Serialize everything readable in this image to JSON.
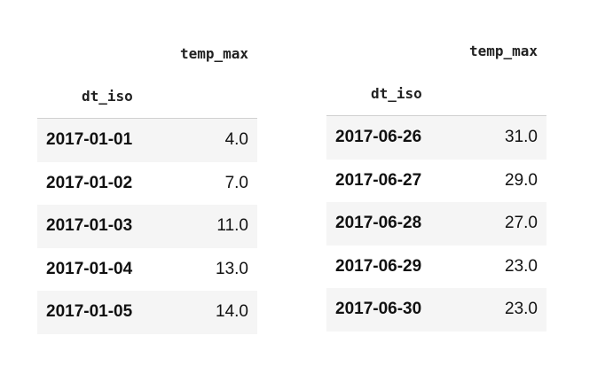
{
  "tables": [
    {
      "column_header": "temp_max",
      "index_header": "dt_iso",
      "rows": [
        {
          "dt_iso": "2017-01-01",
          "temp_max": "4.0"
        },
        {
          "dt_iso": "2017-01-02",
          "temp_max": "7.0"
        },
        {
          "dt_iso": "2017-01-03",
          "temp_max": "11.0"
        },
        {
          "dt_iso": "2017-01-04",
          "temp_max": "13.0"
        },
        {
          "dt_iso": "2017-01-05",
          "temp_max": "14.0"
        }
      ]
    },
    {
      "column_header": "temp_max",
      "index_header": "dt_iso",
      "rows": [
        {
          "dt_iso": "2017-06-26",
          "temp_max": "31.0"
        },
        {
          "dt_iso": "2017-06-27",
          "temp_max": "29.0"
        },
        {
          "dt_iso": "2017-06-28",
          "temp_max": "27.0"
        },
        {
          "dt_iso": "2017-06-29",
          "temp_max": "23.0"
        },
        {
          "dt_iso": "2017-06-30",
          "temp_max": "23.0"
        }
      ]
    }
  ]
}
